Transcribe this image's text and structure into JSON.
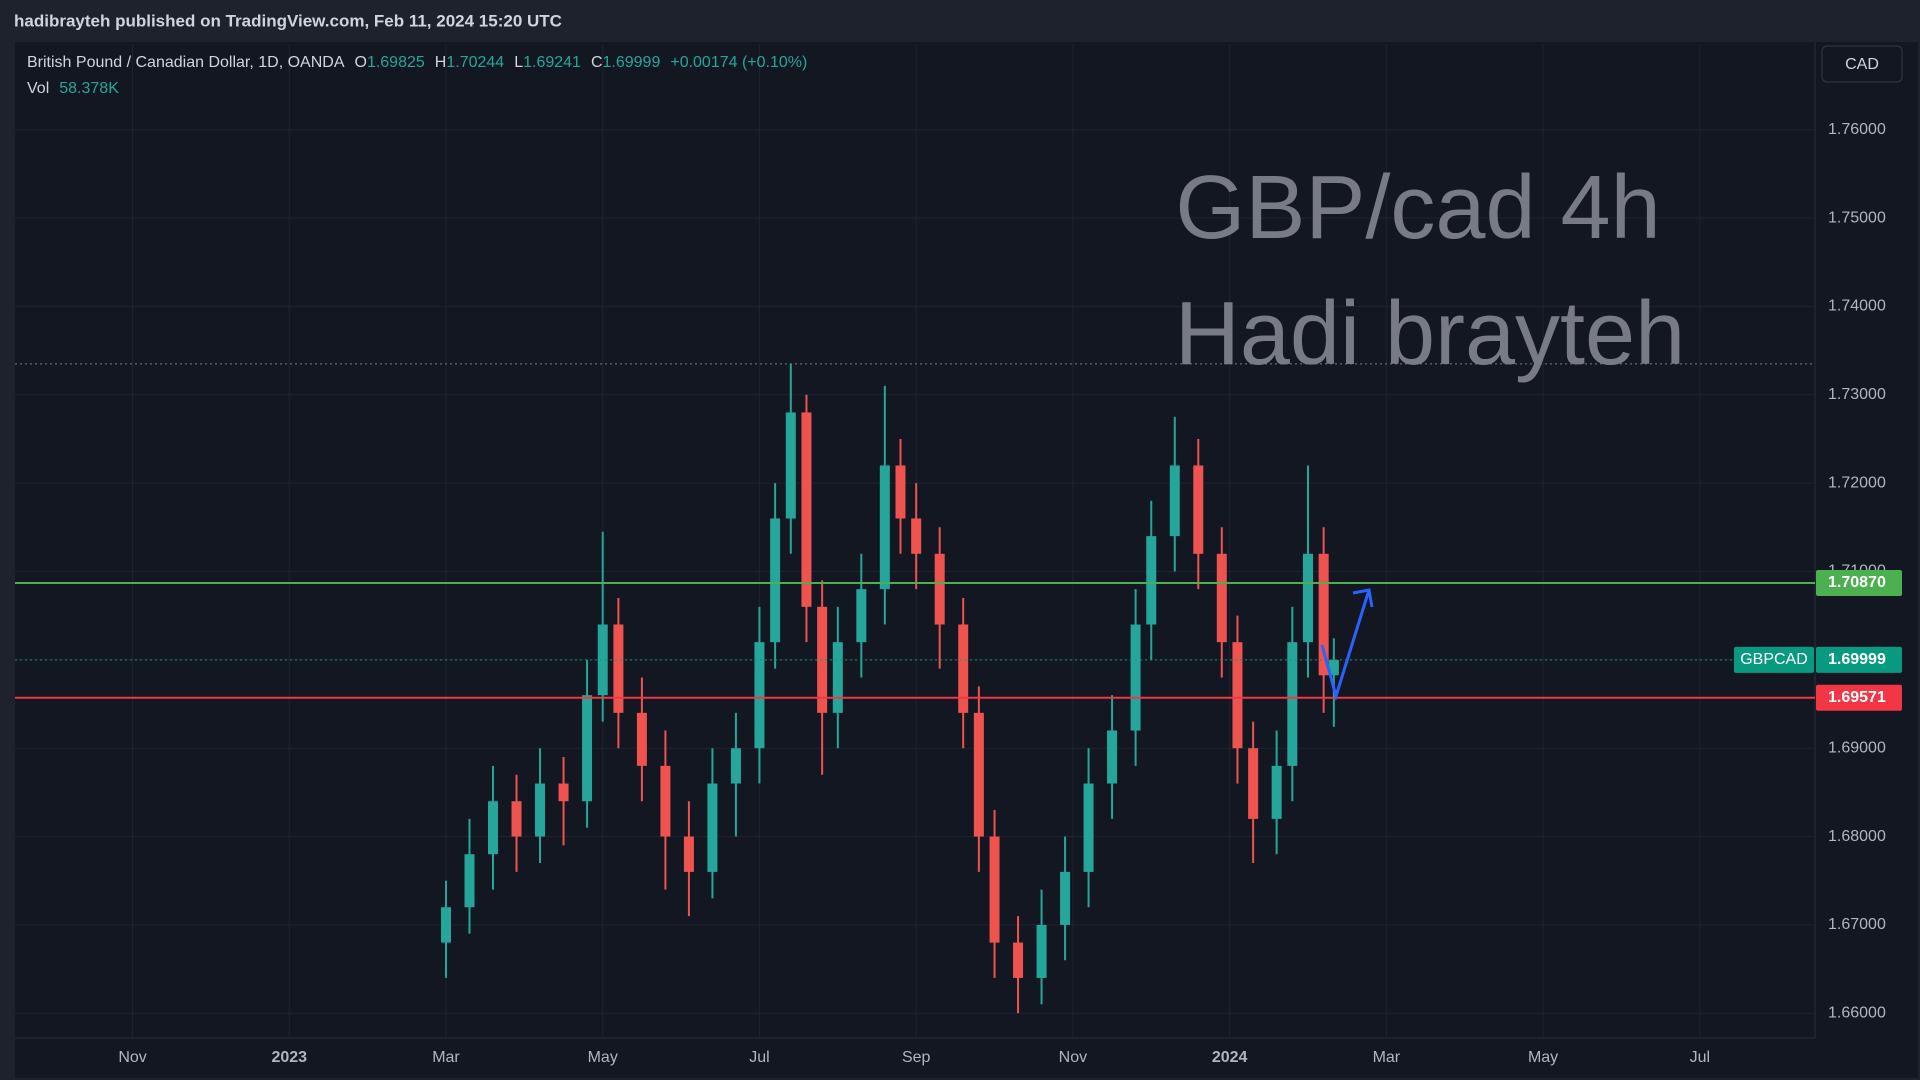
{
  "header": {
    "title": "hadibrayteh published on TradingView.com, Feb 11, 2024 15:20 UTC"
  },
  "chart_data": {
    "type": "candlestick",
    "symbol": "British Pound / Canadian Dollar, 1D, OANDA",
    "ohlc_letters": [
      "O",
      "H",
      "L",
      "C"
    ],
    "change": "+0.00174 (+0.10%)",
    "volume_label": "Vol",
    "volume": "58.378K",
    "currency": "CAD",
    "annotations": [
      "GBP/cad 4h",
      "Hadi brayteh"
    ],
    "up_color": "#26a69a",
    "down_color": "#ef5350",
    "x": [
      2.0,
      2.3,
      2.6,
      2.9,
      3.2,
      3.5,
      3.8,
      4.0,
      4.2,
      4.5,
      4.8,
      5.1,
      5.4,
      5.7,
      6.0,
      6.2,
      6.4,
      6.6,
      6.8,
      7.0,
      7.3,
      7.6,
      7.8,
      8.0,
      8.3,
      8.6,
      8.8,
      9.0,
      9.3,
      9.6,
      9.9,
      10.2,
      10.5,
      10.8,
      11.0,
      11.3,
      11.6,
      11.9,
      12.1,
      12.3,
      12.6,
      12.8,
      13.0,
      13.2,
      13.33
    ],
    "open": [
      1.668,
      1.672,
      1.678,
      1.684,
      1.68,
      1.686,
      1.684,
      1.696,
      1.704,
      1.694,
      1.688,
      1.68,
      1.676,
      1.686,
      1.69,
      1.702,
      1.716,
      1.728,
      1.706,
      1.694,
      1.702,
      1.708,
      1.722,
      1.716,
      1.712,
      1.704,
      1.694,
      1.68,
      1.668,
      1.664,
      1.67,
      1.676,
      1.686,
      1.692,
      1.704,
      1.714,
      1.722,
      1.712,
      1.702,
      1.69,
      1.682,
      1.688,
      1.702,
      1.712,
      1.69825
    ],
    "high": [
      1.675,
      1.682,
      1.688,
      1.687,
      1.69,
      1.689,
      1.7,
      1.7145,
      1.707,
      1.698,
      1.692,
      1.684,
      1.69,
      1.694,
      1.706,
      1.72,
      1.7335,
      1.73,
      1.709,
      1.706,
      1.712,
      1.731,
      1.725,
      1.72,
      1.715,
      1.707,
      1.697,
      1.683,
      1.671,
      1.674,
      1.68,
      1.69,
      1.696,
      1.708,
      1.718,
      1.7275,
      1.725,
      1.715,
      1.705,
      1.693,
      1.692,
      1.706,
      1.722,
      1.715,
      1.70244
    ],
    "low": [
      1.664,
      1.669,
      1.674,
      1.676,
      1.677,
      1.679,
      1.681,
      1.693,
      1.69,
      1.684,
      1.674,
      1.671,
      1.673,
      1.68,
      1.686,
      1.699,
      1.712,
      1.702,
      1.687,
      1.69,
      1.698,
      1.704,
      1.712,
      1.708,
      1.699,
      1.69,
      1.676,
      1.664,
      1.66,
      1.661,
      1.666,
      1.672,
      1.682,
      1.688,
      1.7,
      1.71,
      1.708,
      1.698,
      1.686,
      1.677,
      1.678,
      1.684,
      1.698,
      1.694,
      1.69241
    ],
    "close": [
      1.672,
      1.678,
      1.684,
      1.68,
      1.686,
      1.684,
      1.696,
      1.704,
      1.694,
      1.688,
      1.68,
      1.676,
      1.686,
      1.69,
      1.702,
      1.716,
      1.728,
      1.706,
      1.694,
      1.702,
      1.708,
      1.722,
      1.716,
      1.712,
      1.704,
      1.694,
      1.68,
      1.668,
      1.664,
      1.67,
      1.676,
      1.686,
      1.692,
      1.704,
      1.714,
      1.722,
      1.712,
      1.702,
      1.69,
      1.682,
      1.688,
      1.702,
      1.712,
      1.69825,
      1.69999
    ],
    "last_price_tag": "GBPCAD",
    "last_price_color": "#089981",
    "levels": [
      {
        "value": 1.7087,
        "label": "1.70870",
        "color": "#4caf50"
      },
      {
        "value": 1.69571,
        "label": "1.69571",
        "color": "#f23645"
      }
    ],
    "dotted_level": 1.7335,
    "xlim": [
      -3.5,
      19.47
    ],
    "xticks": [
      {
        "value": -2,
        "label": "Nov"
      },
      {
        "value": 0,
        "label": "2023"
      },
      {
        "value": 2,
        "label": "Mar"
      },
      {
        "value": 4,
        "label": "May"
      },
      {
        "value": 6,
        "label": "Jul"
      },
      {
        "value": 8,
        "label": "Sep"
      },
      {
        "value": 10,
        "label": "Nov"
      },
      {
        "value": 12,
        "label": "2024"
      },
      {
        "value": 14,
        "label": "Mar"
      },
      {
        "value": 16,
        "label": "May"
      },
      {
        "value": 18,
        "label": "Jul"
      }
    ],
    "ylim": [
      1.6572,
      1.7697
    ],
    "yticks": [
      {
        "value": 1.66,
        "label": "1.66000"
      },
      {
        "value": 1.67,
        "label": "1.67000"
      },
      {
        "value": 1.68,
        "label": "1.68000"
      },
      {
        "value": 1.69,
        "label": "1.69000"
      },
      {
        "value": 1.7,
        "label": "1.70000"
      },
      {
        "value": 1.71,
        "label": "1.71000"
      },
      {
        "value": 1.72,
        "label": "1.72000"
      },
      {
        "value": 1.73,
        "label": "1.73000"
      },
      {
        "value": 1.74,
        "label": "1.74000"
      },
      {
        "value": 1.75,
        "label": "1.75000"
      },
      {
        "value": 1.76,
        "label": "1.76000"
      }
    ],
    "grid": true
  }
}
